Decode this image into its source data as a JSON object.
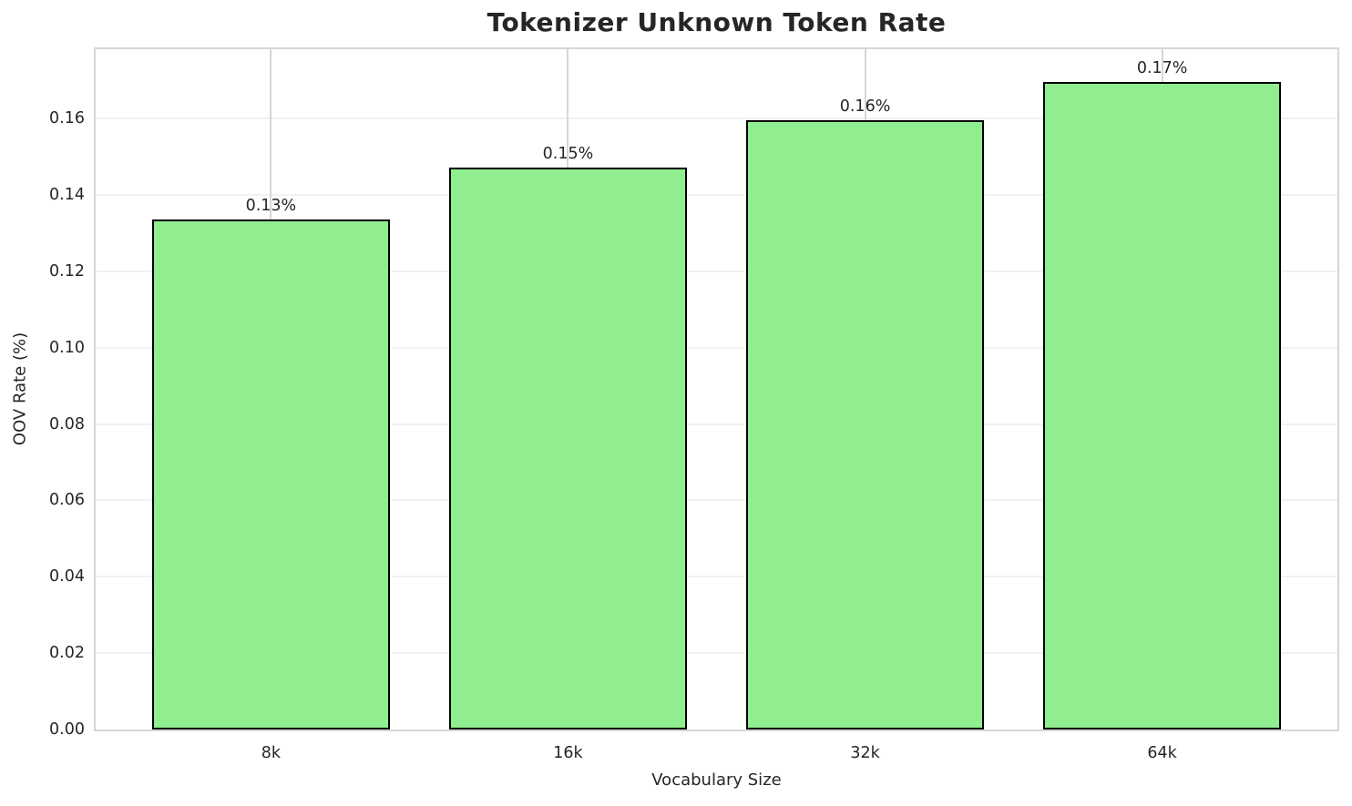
{
  "chart_data": {
    "type": "bar",
    "title": "Tokenizer Unknown Token Rate",
    "xlabel": "Vocabulary Size",
    "ylabel": "OOV Rate (%)",
    "categories": [
      "8k",
      "16k",
      "32k",
      "64k"
    ],
    "values": [
      0.1335,
      0.1473,
      0.1595,
      0.1697
    ],
    "bar_labels": [
      "0.13%",
      "0.15%",
      "0.16%",
      "0.17%"
    ],
    "ylim": [
      0,
      0.1782
    ],
    "ytick_values": [
      0.0,
      0.02,
      0.04,
      0.06,
      0.08,
      0.1,
      0.12,
      0.14,
      0.16
    ],
    "ytick_labels": [
      "0.00",
      "0.02",
      "0.04",
      "0.06",
      "0.08",
      "0.10",
      "0.12",
      "0.14",
      "0.16"
    ],
    "xlim": [
      -0.59,
      3.59
    ],
    "bar_width": 0.8,
    "grid": true,
    "legend": "none",
    "colors": {
      "bar_fill": "#90EE90",
      "bar_edge": "#000000",
      "grid_h": "#f1f1f1",
      "grid_v": "#d6d6d6",
      "spine": "#d6d6d6",
      "text": "#262626",
      "background": "#ffffff"
    }
  }
}
